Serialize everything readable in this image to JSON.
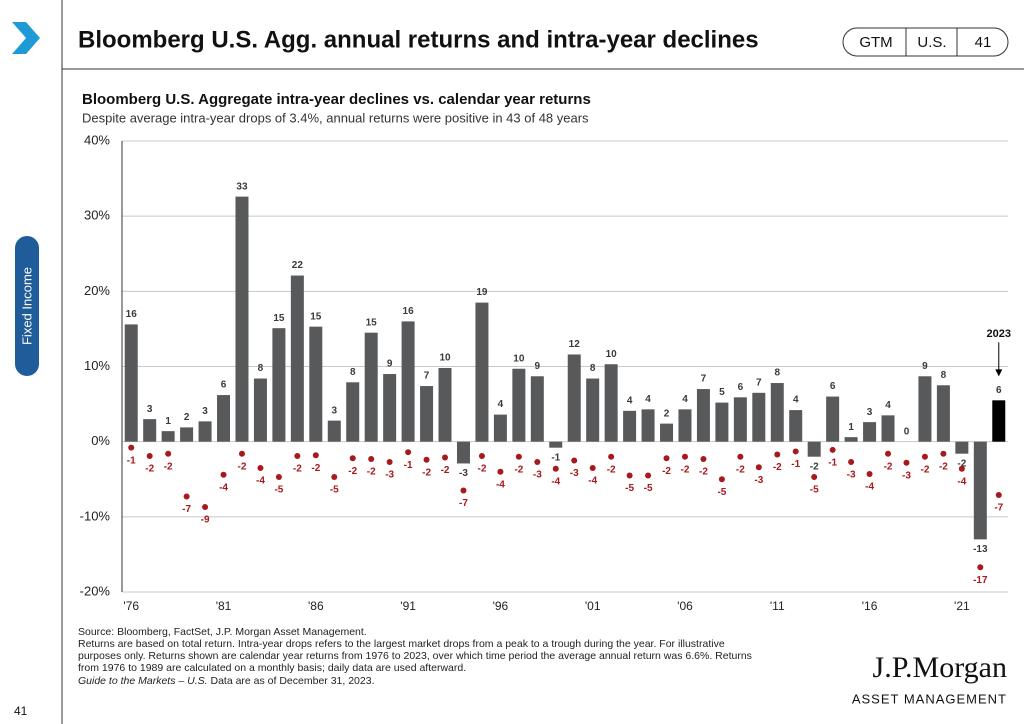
{
  "header": {
    "title": "Bloomberg U.S. Agg. annual returns and intra-year declines",
    "badge": [
      "GTM",
      "U.S.",
      "41"
    ]
  },
  "sidebar": {
    "section": "Fixed Income",
    "page": "41"
  },
  "chart_data": {
    "type": "bar",
    "title": "Bloomberg U.S. Aggregate intra-year declines vs. calendar year returns",
    "subtitle": "Despite average intra-year drops of 3.4%, annual returns were positive in 43 of 48 years",
    "categories": [
      "'76",
      null,
      null,
      null,
      null,
      "'81",
      null,
      null,
      null,
      null,
      "'86",
      null,
      null,
      null,
      null,
      "'91",
      null,
      null,
      null,
      null,
      "'96",
      null,
      null,
      null,
      null,
      "'01",
      null,
      null,
      null,
      null,
      "'06",
      null,
      null,
      null,
      null,
      "'11",
      null,
      null,
      null,
      null,
      "'16",
      null,
      null,
      null,
      null,
      "'21",
      null,
      null
    ],
    "series": [
      {
        "color": "#58595b",
        "label_color": "#3a3a3a",
        "values": [
          15.6,
          3.0,
          1.4,
          1.9,
          2.7,
          6.2,
          32.6,
          8.4,
          15.1,
          22.1,
          15.3,
          2.8,
          7.9,
          14.5,
          9.0,
          16.0,
          7.4,
          9.8,
          -2.9,
          18.5,
          3.6,
          9.7,
          8.7,
          -0.8,
          11.6,
          8.4,
          10.3,
          4.1,
          4.3,
          2.4,
          4.3,
          7.0,
          5.2,
          5.9,
          6.5,
          7.8,
          4.2,
          -2.0,
          6.0,
          0.6,
          2.6,
          3.5,
          0.0,
          8.7,
          7.5,
          -1.6,
          -13.0,
          5.5
        ],
        "value_labels": [
          "16",
          "3",
          "1",
          "2",
          "3",
          "6",
          "33",
          "8",
          "15",
          "22",
          "15",
          "3",
          "8",
          "15",
          "9",
          "16",
          "7",
          "10",
          "-3",
          "19",
          "4",
          "10",
          "9",
          "-1",
          "12",
          "8",
          "10",
          "4",
          "4",
          "2",
          "4",
          "7",
          "5",
          "6",
          "7",
          "8",
          "4",
          "-2",
          "6",
          "1",
          "3",
          "4",
          "0",
          "9",
          "8",
          "-2",
          "-13",
          "6"
        ]
      },
      {
        "type": "scatter",
        "color": "#a6191c",
        "values": [
          -0.8,
          -1.9,
          -1.6,
          -7.3,
          -8.7,
          -4.4,
          -1.6,
          -3.5,
          -4.7,
          -1.9,
          -1.8,
          -4.7,
          -2.2,
          -2.3,
          -2.7,
          -1.4,
          -2.4,
          -2.1,
          -6.5,
          -1.9,
          -4.0,
          -2.0,
          -2.7,
          -3.6,
          -2.5,
          -3.5,
          -2.0,
          -4.5,
          -4.5,
          -2.2,
          -2.0,
          -2.3,
          -5.0,
          -2.0,
          -3.4,
          -1.7,
          -1.3,
          -4.7,
          -1.1,
          -2.7,
          -4.3,
          -1.6,
          -2.8,
          -2.0,
          -1.6,
          -3.6,
          -16.7,
          -7.1
        ],
        "value_labels": [
          "-1",
          "-2",
          "-2",
          "-7",
          "-9",
          "-4",
          "-2",
          "-4",
          "-5",
          "-2",
          "-2",
          "-5",
          "-2",
          "-2",
          "-3",
          "-1",
          "-2",
          "-2",
          "-7",
          "-2",
          "-4",
          "-2",
          "-3",
          "-4",
          "-3",
          "-4",
          "-2",
          "-5",
          "-5",
          "-2",
          "-2",
          "-2",
          "-5",
          "-2",
          "-3",
          "-2",
          "-1",
          "-5",
          "-1",
          "-3",
          "-4",
          "-2",
          "-3",
          "-2",
          "-2",
          "-4",
          "-17",
          "-7"
        ]
      }
    ],
    "annotation": {
      "text": "2023",
      "index": 47,
      "color": "#000000"
    },
    "ylim": [
      -20,
      40
    ],
    "yticks": [
      {
        "value": -20,
        "label": "-20%"
      },
      {
        "value": -10,
        "label": "-10%"
      },
      {
        "value": 0,
        "label": "0%"
      },
      {
        "value": 10,
        "label": "10%"
      },
      {
        "value": 20,
        "label": "20%"
      },
      {
        "value": 30,
        "label": "30%"
      },
      {
        "value": 40,
        "label": "40%"
      }
    ],
    "grid": true
  },
  "footnotes": [
    "Source: Bloomberg, FactSet, J.P. Morgan Asset Management.",
    "Returns are based on total return. Intra-year drops refers to the largest market drops from a peak to a trough during the year. For illustrative",
    "purposes only. Returns shown are calendar year returns from 1976 to 2023, over which time period the average annual return was 6.6%. Returns",
    "from 1976 to 1989 are calculated on a monthly basis; daily data are used afterward."
  ],
  "data_note": {
    "italic": "Guide to the Markets – U.S.",
    "text": " Data are as of December 31, 2023."
  },
  "logo": {
    "name": "J.P.Morgan",
    "tagline": "ASSET MANAGEMENT"
  }
}
